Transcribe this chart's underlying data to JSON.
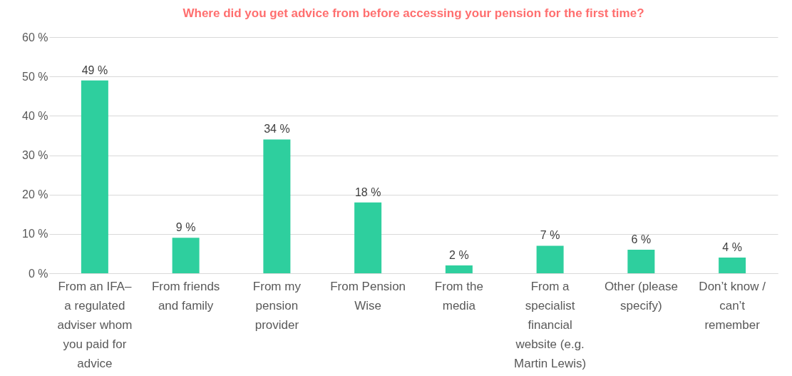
{
  "chart_data": {
    "type": "bar",
    "title": "Where did you get advice from before accessing your pension for the first time?",
    "categories": [
      "From an IFA– a regulated adviser whom you paid for advice",
      "From friends and family",
      "From my pension provider",
      "From Pension Wise",
      "From the media",
      "From a specialist financial website (e.g. Martin Lewis)",
      "Other (please specify)",
      "Don’t know / can’t remember"
    ],
    "values": [
      49,
      9,
      34,
      18,
      2,
      7,
      6,
      4
    ],
    "value_labels": [
      "49 %",
      "9 %",
      "34 %",
      "18 %",
      "2 %",
      "7 %",
      "6 %",
      "4 %"
    ],
    "color": "#2ecf9e",
    "ylim": [
      0,
      60
    ],
    "yticks": [
      {
        "value": 0,
        "label": "0 %"
      },
      {
        "value": 10,
        "label": "10 %"
      },
      {
        "value": 20,
        "label": "20 %"
      },
      {
        "value": 30,
        "label": "30 %"
      },
      {
        "value": 40,
        "label": "40 %"
      },
      {
        "value": 50,
        "label": "50 %"
      },
      {
        "value": 60,
        "label": "60 %"
      }
    ],
    "grid": "y"
  }
}
